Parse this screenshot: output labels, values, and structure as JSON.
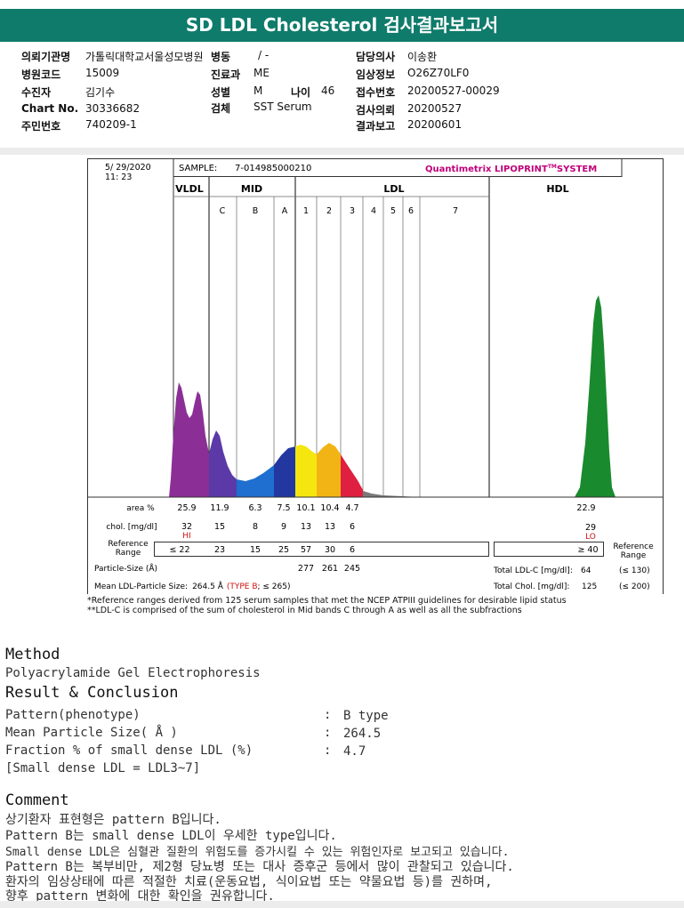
{
  "title": "SD LDL Cholesterol 검사결과보고서",
  "info": {
    "institution_label": "의뢰기관명",
    "institution_value": "가톨릭대학교서울성모병원",
    "ward_label": "병동",
    "ward_value": "/ -",
    "doctor_label": "담당의사",
    "doctor_value": "이송환",
    "hospital_code_label": "병원코드",
    "hospital_code_value": "15009",
    "dept_label": "진료과",
    "dept_value": "ME",
    "clinical_label": "임상정보",
    "clinical_value": "O26Z70LF0",
    "examinee_label": "수진자",
    "examinee_value": "김기수",
    "sex_label": "성별",
    "sex_value": "M",
    "age_label": "나이",
    "age_value": "46",
    "receipt_label": "접수번호",
    "receipt_value": "20200527-00029",
    "chart_label": "Chart No.",
    "chart_value": "30336682",
    "specimen_label": "검체",
    "specimen_value": "SST Serum",
    "request_label": "검사의뢰",
    "request_value": "20200527",
    "id_label": "주민번호",
    "id_value": "740209-1",
    "result_label": "결과보고",
    "result_value": "20200601"
  },
  "report": {
    "date": "5/ 29/2020",
    "time": "11: 23",
    "sample_label": "SAMPLE:",
    "sample_id": "7-014985000210",
    "brand": "Quantimetrix LIPOPRINT",
    "brand_tm": "TM",
    "brand_suffix": "SYSTEM",
    "vldl": "VLDL",
    "mid": "MID",
    "ldl": "LDL",
    "hdl": "HDL",
    "mid_bands": [
      "C",
      "B",
      "A"
    ],
    "ldl_bands": [
      "1",
      "2",
      "3",
      "4",
      "5",
      "6",
      "7"
    ],
    "area_label": "area %",
    "area_values": [
      "25.9",
      "11.9",
      "6.3",
      "7.5",
      "10.1",
      "10.4",
      "4.7"
    ],
    "area_hdl": "22.9",
    "chol_label": "chol. [mg/dl]",
    "chol_values": [
      "32",
      "15",
      "8",
      "9",
      "13",
      "13",
      "6"
    ],
    "chol_hi": "HI",
    "chol_hdl": "29",
    "chol_lo": "LO",
    "ref_label_1": "Reference",
    "ref_label_2": "Range",
    "ref_values": [
      "≤ 22",
      "23",
      "15",
      "25",
      "57",
      "30",
      "6"
    ],
    "ref_hdl": "≥ 40",
    "ref_right_1": "Reference",
    "ref_right_2": "Range",
    "particle_label": "Particle-Size (Å)",
    "particle_values": [
      "277",
      "261",
      "245"
    ],
    "total_ldl_label": "Total LDL-C [mg/dl]:",
    "total_ldl_value": "64",
    "total_ldl_ref": "(≤ 130)",
    "mean_label": "Mean LDL-Particle Size:",
    "mean_value": "264.5 Å",
    "mean_type": "(TYPE B",
    "mean_ref": "; ≤ 265)",
    "total_chol_label": "Total Chol. [mg/dl]:",
    "total_chol_value": "125",
    "total_chol_ref": "(≤ 200)"
  },
  "footnotes": {
    "line1": "*Reference ranges derived from 125 serum samples that met the NCEP ATPIII guidelines for desirable lipid status",
    "line2": "**LDL-C is comprised of the sum of cholesterol in Mid bands C through A as well as all the subfractions"
  },
  "method": {
    "heading": "Method",
    "text": "Polyacrylamide Gel Electrophoresis"
  },
  "result": {
    "heading": "Result & Conclusion",
    "rows": [
      {
        "label": "Pattern(phenotype)",
        "value": "B type"
      },
      {
        "label": "Mean Particle Size( Å )",
        "value": "264.5"
      },
      {
        "label": "Fraction % of small dense LDL (%)",
        "value": "4.7"
      }
    ],
    "note": "[Small dense LDL = LDL3~7]",
    "separator": ":"
  },
  "comment": {
    "heading": "Comment",
    "lines": [
      "상기환자 표현형은 pattern B입니다.",
      "Pattern B는 small dense LDL이 우세한 type입니다.",
      "Small dense LDL은 심혈관 질환의 위험도를 증가시킬 수 있는 위험인자로 보고되고 있습니다.",
      "Pattern B는 복부비만, 제2형 당뇨병 또는 대사 증후군 등에서 많이 관찰되고 있습니다.",
      "환자의 임상상태에 따른 적절한 치료(운동요법, 식이요법 또는 약물요법 등)를 권하며,",
      "향후 pattern 변화에 대한 확인을 권유합니다."
    ]
  },
  "colors": {
    "header": "#0f7b6b",
    "vldl": "#8b2f97",
    "midc": "#5b3aa8",
    "midb": "#1f6fd0",
    "mida": "#2238a0",
    "ldl1": "#f5e610",
    "ldl2": "#f2b414",
    "ldl3": "#e02040",
    "hdl": "#1a8a2e",
    "brand": "#c0007a"
  }
}
